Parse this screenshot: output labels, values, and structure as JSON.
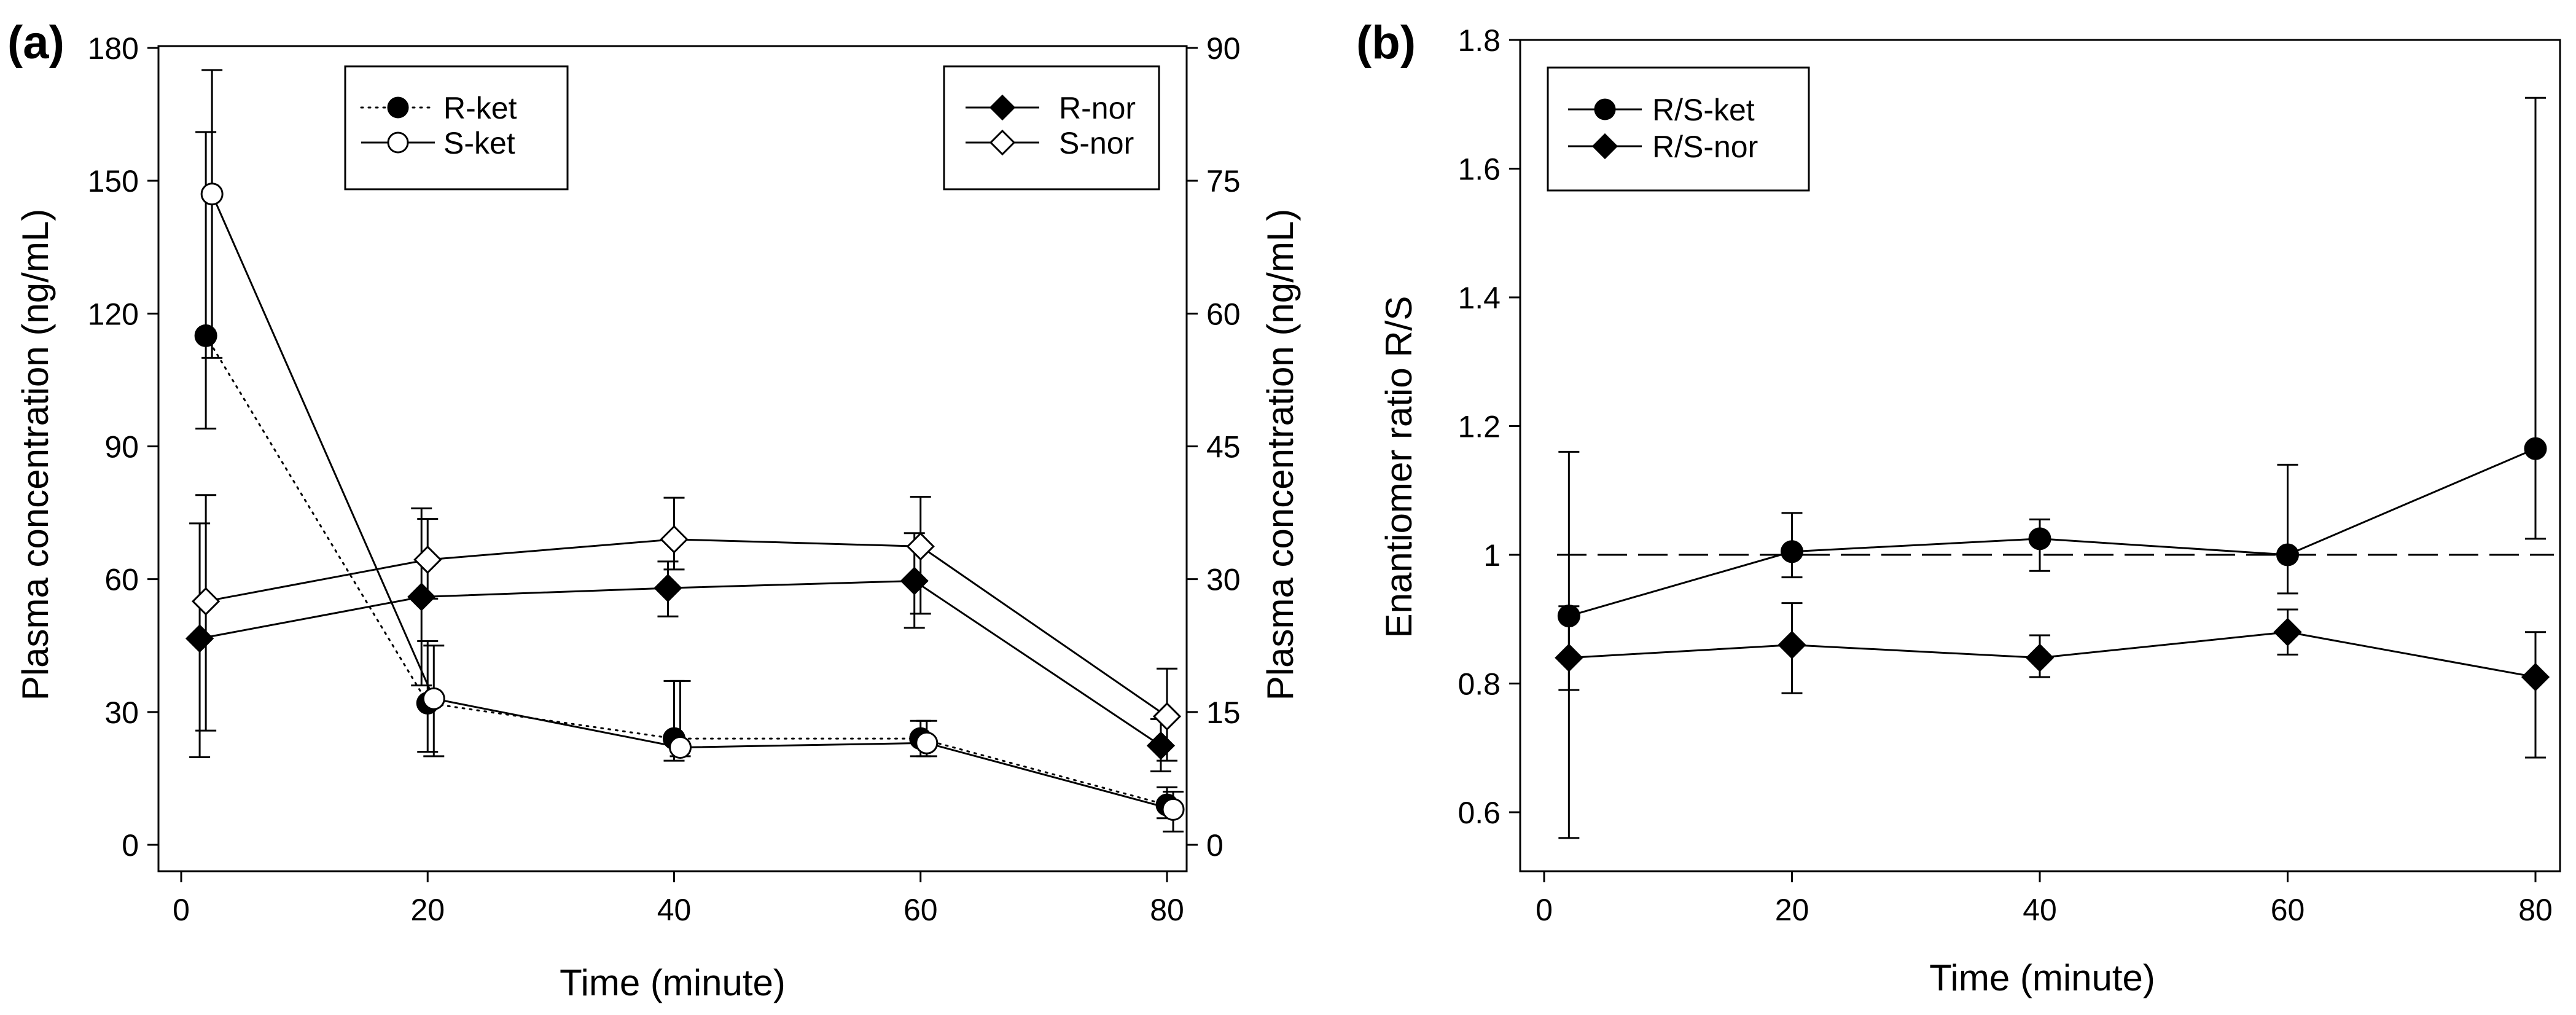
{
  "chart_data": [
    {
      "panel_label": "(a)",
      "type": "line",
      "xlabel": "Time (minute)",
      "ylabel": "Plasma concentration (ng/mL)",
      "ylabel_right": "Plasma concentration (ng/mL)",
      "xlim": [
        -2,
        82
      ],
      "x_ticks": [
        0,
        20,
        40,
        60,
        80
      ],
      "ylim": [
        -6,
        180
      ],
      "y_ticks": [
        0,
        30,
        60,
        90,
        120,
        150,
        180
      ],
      "ylim_right": [
        -3,
        90
      ],
      "y_ticks_right": [
        0,
        15,
        30,
        45,
        60,
        75,
        90
      ],
      "legends": [
        {
          "name": "legend-ketamine",
          "entries": [
            "R-ket",
            "S-ket"
          ]
        },
        {
          "name": "legend-norketamine",
          "entries": [
            "R-nor",
            "S-nor"
          ]
        }
      ],
      "series": [
        {
          "name": "R-ket",
          "axis": "left",
          "marker": "circle-filled",
          "line": "dotted",
          "x": [
            2,
            20,
            40,
            60,
            80
          ],
          "y": [
            115,
            32,
            24,
            24,
            9
          ],
          "err": [
            [
              94,
              161
            ],
            [
              21,
              46
            ],
            [
              19,
              37
            ],
            [
              20,
              28
            ],
            [
              6,
              13
            ]
          ]
        },
        {
          "name": "S-ket",
          "axis": "left",
          "marker": "circle-open",
          "line": "solid",
          "x": [
            2.5,
            20.5,
            40.5,
            60.5,
            80.5
          ],
          "y": [
            147,
            33,
            22,
            23,
            8
          ],
          "err": [
            [
              110,
              175
            ],
            [
              20,
              45
            ],
            [
              20,
              37
            ],
            [
              20,
              28
            ],
            [
              3,
              12
            ]
          ]
        },
        {
          "name": "R-nor",
          "axis": "right",
          "marker": "diamond-filled",
          "line": "solid",
          "x": [
            1.5,
            19.5,
            39.5,
            59.5,
            79.5
          ],
          "y": [
            23.3,
            28,
            29,
            29.8,
            11.2
          ],
          "err": [
            [
              9.9,
              36.3
            ],
            [
              18,
              38
            ],
            [
              25.8,
              32
            ],
            [
              24.5,
              35.2
            ],
            [
              8.3,
              14.2
            ]
          ]
        },
        {
          "name": "S-nor",
          "axis": "right",
          "marker": "diamond-open",
          "line": "solid",
          "x": [
            2,
            20,
            40,
            60,
            80
          ],
          "y": [
            27.5,
            32.2,
            34.5,
            33.7,
            14.5
          ],
          "err": [
            [
              12.9,
              39.5
            ],
            [
              27.8,
              36.8
            ],
            [
              31.1,
              39.2
            ],
            [
              26.1,
              39.3
            ],
            [
              9.5,
              19.9
            ]
          ]
        }
      ]
    },
    {
      "panel_label": "(b)",
      "type": "line",
      "xlabel": "Time (minute)",
      "ylabel": "Enantiomer ratio R/S",
      "xlim": [
        -2,
        82
      ],
      "x_ticks": [
        0,
        20,
        40,
        60,
        80
      ],
      "ylim": [
        0.5,
        1.8
      ],
      "y_ticks": [
        0.6,
        0.8,
        1.0,
        1.2,
        1.4,
        1.6,
        1.8
      ],
      "reference_line": {
        "y": 1.0,
        "style": "dashed"
      },
      "legends": [
        {
          "name": "legend-ratio",
          "entries": [
            "R/S-ket",
            "R/S-nor"
          ]
        }
      ],
      "series": [
        {
          "name": "R/S-ket",
          "marker": "circle-filled",
          "line": "solid",
          "x": [
            2,
            20,
            40,
            60,
            80
          ],
          "y": [
            0.905,
            1.005,
            1.025,
            1.0,
            1.165
          ],
          "err": [
            [
              0.56,
              1.16
            ],
            [
              0.965,
              1.065
            ],
            [
              0.975,
              1.055
            ],
            [
              0.94,
              1.14
            ],
            [
              1.025,
              1.71
            ]
          ]
        },
        {
          "name": "R/S-nor",
          "marker": "diamond-filled",
          "line": "solid",
          "x": [
            2,
            20,
            40,
            60,
            80
          ],
          "y": [
            0.84,
            0.86,
            0.84,
            0.88,
            0.81
          ],
          "err": [
            [
              0.79,
              0.92
            ],
            [
              0.785,
              0.925
            ],
            [
              0.81,
              0.875
            ],
            [
              0.845,
              0.915
            ],
            [
              0.685,
              0.88
            ]
          ]
        }
      ]
    }
  ]
}
